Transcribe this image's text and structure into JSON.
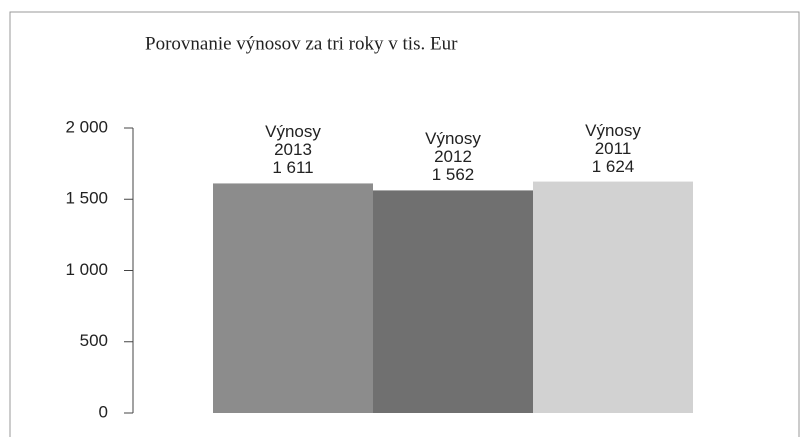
{
  "chart_data": {
    "type": "bar",
    "title": "Porovnanie výnosov za tri roky v tis. Eur",
    "categories": [
      "Výnosy 2013",
      "Výnosy 2012",
      "Výnosy 2011"
    ],
    "values": [
      1611,
      1562,
      1624
    ],
    "value_labels": [
      "1 611",
      "1 562",
      "1 624"
    ],
    "colors": [
      "#8c8c8c",
      "#707070",
      "#d2d2d2"
    ],
    "ylim": [
      0,
      2000
    ],
    "yticks": [
      0,
      500,
      {
        "value": 1000,
        "label": "1 000"
      },
      {
        "value": 1500,
        "label": "1 500"
      },
      {
        "value": 2000,
        "label": "2 000"
      }
    ]
  }
}
